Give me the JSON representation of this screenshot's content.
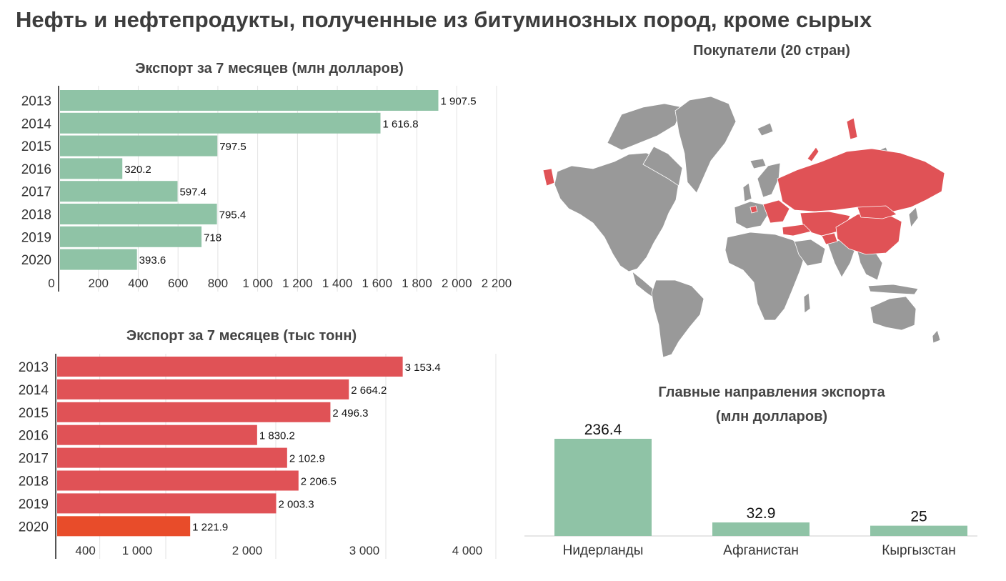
{
  "title": "Нефть и нефтепродукты, полученные из битуминозных пород, кроме сырых",
  "colors": {
    "green": "#8fc3a6",
    "red": "#e05256",
    "highlight": "#e84c2a",
    "map_grey": "#999999",
    "map_red": "#e05256"
  },
  "map": {
    "title": "Покупатели (20 стран)"
  },
  "chart_data": [
    {
      "type": "bar",
      "orientation": "horizontal",
      "title": "Экспорт за 7 месяцев (млн долларов)",
      "categories": [
        "2013",
        "2014",
        "2015",
        "2016",
        "2017",
        "2018",
        "2019",
        "2020"
      ],
      "values": [
        1907.5,
        1616.8,
        797.5,
        320.2,
        597.4,
        795.4,
        718,
        393.6
      ],
      "value_labels": [
        "1 907.5",
        "1 616.8",
        "797.5",
        "320.2",
        "597.4",
        "795.4",
        "718",
        "393.6"
      ],
      "xlim": [
        0,
        2200
      ],
      "ticks": [
        0,
        200,
        400,
        600,
        800,
        1000,
        1200,
        1400,
        1600,
        1800,
        2000,
        2200
      ],
      "tick_labels": [
        "0",
        "200",
        "400",
        "600",
        "800",
        "1 000",
        "1 200",
        "1 400",
        "1 600",
        "1 800",
        "2 000",
        "2 200"
      ],
      "grid": true,
      "color": "#8fc3a6"
    },
    {
      "type": "bar",
      "orientation": "horizontal",
      "title": "Экспорт за 7 месяцев (тыс тонн)",
      "categories": [
        "2013",
        "2014",
        "2015",
        "2016",
        "2017",
        "2018",
        "2019",
        "2020"
      ],
      "values": [
        3153.4,
        2664.2,
        2496.3,
        1830.2,
        2102.9,
        2206.5,
        2003.3,
        1221.9
      ],
      "value_labels": [
        "3 153.4",
        "2 664.2",
        "2 496.3",
        "1 830.2",
        "2 102.9",
        "2 206.5",
        "2 003.3",
        "1 221.9"
      ],
      "xlim": [
        0,
        4000
      ],
      "ticks": [
        400,
        1000,
        2000,
        3000,
        4000
      ],
      "tick_labels": [
        "400",
        "1 000",
        "2 000",
        "3 000",
        "4 000"
      ],
      "grid": true,
      "color": "#e05256",
      "highlight_index": 7,
      "highlight_color": "#e84c2a"
    },
    {
      "type": "bar",
      "orientation": "vertical",
      "title": "Главные направления экспорта",
      "subtitle": "(млн долларов)",
      "categories": [
        "Нидерланды",
        "Афганистан",
        "Кыргызстан"
      ],
      "values": [
        236.4,
        32.9,
        25
      ],
      "value_labels": [
        "236.4",
        "32.9",
        "25"
      ],
      "grid": false,
      "color": "#8fc3a6"
    }
  ]
}
